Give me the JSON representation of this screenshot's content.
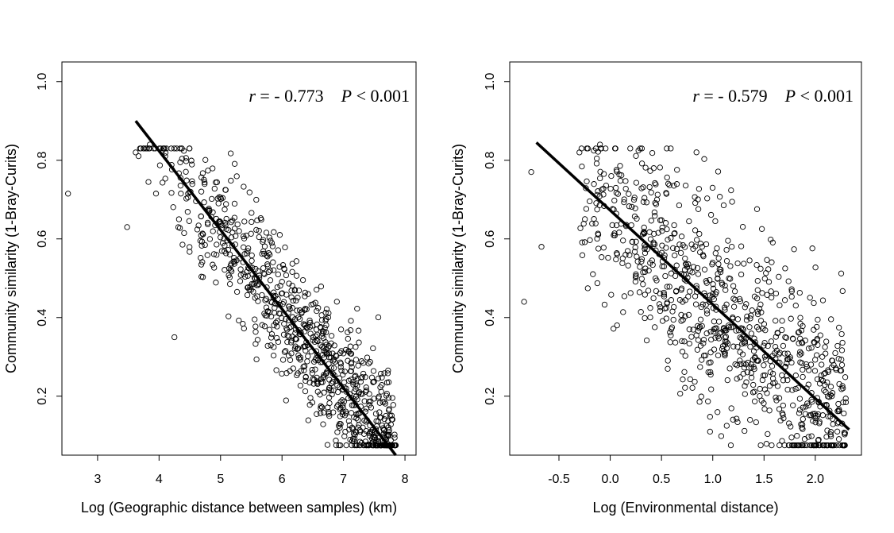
{
  "chart_data": [
    {
      "type": "scatter",
      "xlabel": "Log (Geographic distance between samples) (km)",
      "ylabel": "Community similarity (1-Bray-Curits)",
      "xlim": [
        2.42,
        8.18
      ],
      "ylim": [
        0.05,
        1.05
      ],
      "xticks": [
        3,
        4,
        5,
        6,
        7,
        8
      ],
      "yticks": [
        0.2,
        0.4,
        0.6,
        0.8,
        1.0
      ],
      "annotation": {
        "r_symbol": "r",
        "r_text": " = - 0.773",
        "p_symbol": "P",
        "p_text": " < 0.001"
      },
      "fit_line": {
        "x": [
          3.62,
          7.85
        ],
        "y": [
          0.9,
          0.05
        ]
      },
      "points": {
        "n": 900,
        "x_range": [
          3.55,
          7.85
        ],
        "noise_sd": 0.085,
        "seed": 11,
        "outliers": [
          [
            2.52,
            0.715
          ],
          [
            3.48,
            0.63
          ],
          [
            3.62,
            0.82
          ],
          [
            3.85,
            0.84
          ],
          [
            4.1,
            0.81
          ],
          [
            4.25,
            0.35
          ]
        ]
      }
    },
    {
      "type": "scatter",
      "xlabel": "Log (Environmental distance)",
      "ylabel": "Community similarity (1-Bray-Curits)",
      "xlim": [
        -0.98,
        2.45
      ],
      "ylim": [
        0.05,
        1.05
      ],
      "xticks": [
        -0.5,
        0.0,
        0.5,
        1.0,
        1.5,
        2.0
      ],
      "yticks": [
        0.2,
        0.4,
        0.6,
        0.8,
        1.0
      ],
      "annotation": {
        "r_symbol": "r",
        "r_text": " = - 0.579",
        "p_symbol": "P",
        "p_text": " < 0.001"
      },
      "fit_line": {
        "x": [
          -0.72,
          2.33
        ],
        "y": [
          0.845,
          0.115
        ]
      },
      "points": {
        "n": 900,
        "x_range": [
          -0.3,
          2.3
        ],
        "noise_sd": 0.13,
        "seed": 29,
        "outliers": [
          [
            -0.84,
            0.44
          ],
          [
            -0.77,
            0.77
          ],
          [
            -0.67,
            0.58
          ],
          [
            -0.3,
            0.82
          ],
          [
            -0.1,
            0.84
          ],
          [
            0.25,
            0.51
          ]
        ]
      }
    }
  ]
}
